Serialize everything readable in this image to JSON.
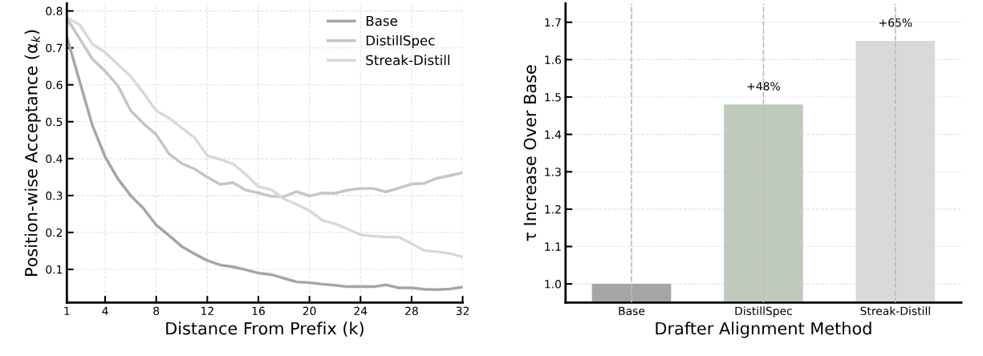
{
  "chart_data": [
    {
      "type": "line",
      "xlabel": "Distance From Prefix (k)",
      "ylabel": "Position-wise Acceptance (α$_{k}$)",
      "x": [
        1,
        2,
        3,
        4,
        5,
        6,
        7,
        8,
        9,
        10,
        11,
        12,
        13,
        14,
        15,
        16,
        17,
        18,
        19,
        20,
        21,
        22,
        23,
        24,
        25,
        26,
        27,
        28,
        29,
        30,
        31,
        32
      ],
      "xlim": [
        1,
        32
      ],
      "xticks": [
        1,
        4,
        8,
        12,
        16,
        20,
        24,
        28,
        32
      ],
      "ylim": [
        0.01,
        0.82
      ],
      "yticks": [
        0.1,
        0.2,
        0.3,
        0.4,
        0.5,
        0.6,
        0.7,
        0.8
      ],
      "grid": true,
      "legend": "top right",
      "marker": "none",
      "line_style": "solid",
      "series": [
        {
          "name": "Base",
          "color": "#a6a6a6",
          "values": [
            0.73,
            0.61,
            0.49,
            0.405,
            0.345,
            0.3,
            0.265,
            0.22,
            0.192,
            0.162,
            0.142,
            0.124,
            0.112,
            0.107,
            0.099,
            0.09,
            0.086,
            0.076,
            0.066,
            0.064,
            0.06,
            0.057,
            0.053,
            0.054,
            0.053,
            0.058,
            0.05,
            0.05,
            0.046,
            0.045,
            0.047,
            0.052
          ]
        },
        {
          "name": "DistillSpec",
          "color": "#bfcabd",
          "values": [
            0.78,
            0.725,
            0.67,
            0.637,
            0.597,
            0.53,
            0.495,
            0.465,
            0.413,
            0.387,
            0.372,
            0.35,
            0.33,
            0.335,
            0.315,
            0.307,
            0.298,
            0.297,
            0.311,
            0.299,
            0.307,
            0.306,
            0.315,
            0.319,
            0.319,
            0.31,
            0.32,
            0.331,
            0.333,
            0.347,
            0.354,
            0.362
          ]
        },
        {
          "name": "Streak-Distill",
          "color": "#d9d9d9",
          "values": [
            0.782,
            0.763,
            0.71,
            0.688,
            0.655,
            0.623,
            0.578,
            0.53,
            0.51,
            0.483,
            0.457,
            0.408,
            0.398,
            0.386,
            0.358,
            0.324,
            0.316,
            0.291,
            0.276,
            0.259,
            0.233,
            0.224,
            0.209,
            0.194,
            0.19,
            0.188,
            0.187,
            0.17,
            0.151,
            0.148,
            0.143,
            0.134
          ]
        }
      ]
    },
    {
      "type": "bar",
      "xlabel": "Drafter Alignment Method",
      "ylabel": "τ Increase Over Base",
      "categories": [
        "Base",
        "DistillSpec",
        "Streak-Distill"
      ],
      "values": [
        1.0,
        1.48,
        1.65
      ],
      "colors": [
        "#a6a6a6",
        "#bfcabd",
        "#d9d9d9"
      ],
      "ylim": [
        0.95,
        1.75
      ],
      "yticks": [
        {
          "value": 1.0,
          "label": "1.0"
        },
        1.1,
        1.2,
        1.3,
        1.4,
        1.5,
        1.6,
        1.7
      ],
      "grid": true,
      "annotations": [
        {
          "text": "+48%",
          "x": "DistillSpec",
          "y": 1.48
        },
        {
          "text": "+65%",
          "x": "Streak-Distill",
          "y": 1.65
        }
      ]
    }
  ]
}
